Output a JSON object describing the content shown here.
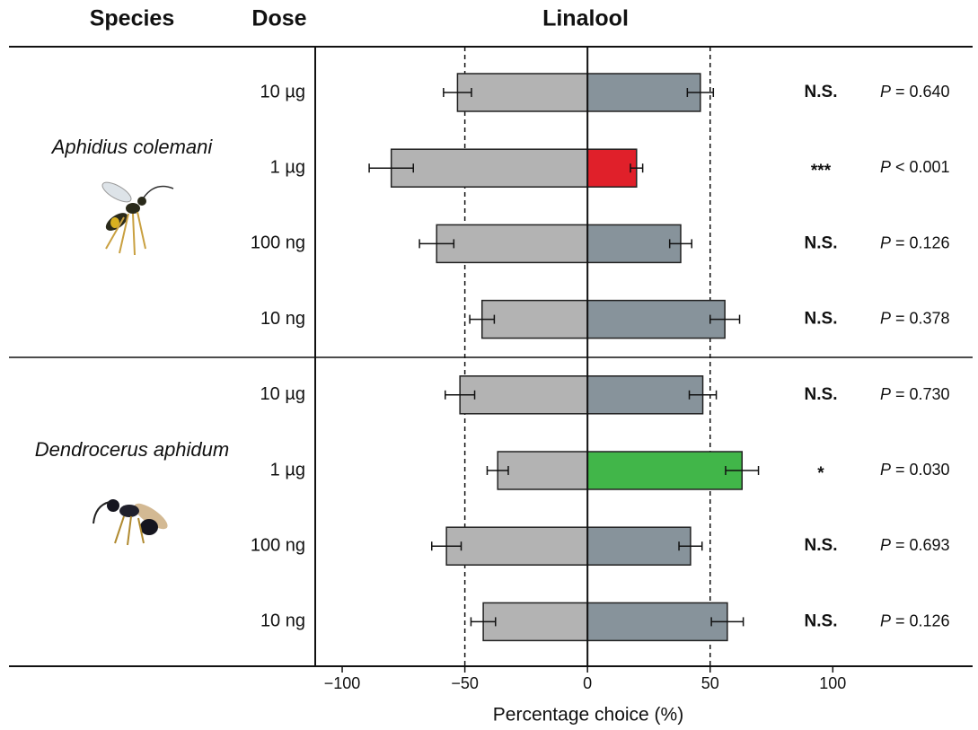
{
  "chart_data": {
    "type": "diverging-bar",
    "title": "Linalool",
    "species_header": "Species",
    "dose_header": "Dose",
    "xlabel": "Percentage choice (%)",
    "xlim": [
      -111,
      157
    ],
    "xticks": [
      {
        "value": -100,
        "label": "−100"
      },
      {
        "value": -50,
        "label": "−50"
      },
      0,
      50,
      100
    ],
    "reference_lines": [
      -50,
      50
    ],
    "p_symbol": "P",
    "groups": [
      {
        "name": "Aphidius colemani",
        "categories": [
          "10 µg",
          "1 µg",
          "100 ng",
          "10 ng"
        ],
        "series": [
          {
            "color": "#b3b3b3",
            "values": [
              -53,
              -80,
              -61.5,
              -43
            ],
            "errors": [
              5.7,
              9,
              7,
              5
            ]
          },
          {
            "colors": [
              "#87939b",
              "#e0202a",
              "#87939b",
              "#87939b"
            ],
            "values": [
              46,
              20,
              38,
              56
            ],
            "errors": [
              5.3,
              2.5,
              4.5,
              6
            ]
          }
        ],
        "significance": [
          "N.S.",
          "***",
          "N.S.",
          "N.S."
        ],
        "p_values": [
          "= 0.640",
          "< 0.001",
          "= 0.126",
          "= 0.378"
        ]
      },
      {
        "name": "Dendrocerus aphidum",
        "categories": [
          "10 µg",
          "1 µg",
          "100 ng",
          "10 ng"
        ],
        "series": [
          {
            "color": "#b3b3b3",
            "values": [
              -52,
              -36.6,
              -57.5,
              -42.5
            ],
            "errors": [
              6,
              4.3,
              6,
              5
            ]
          },
          {
            "colors": [
              "#87939b",
              "#41b649",
              "#87939b",
              "#87939b"
            ],
            "values": [
              47,
              63,
              42,
              57
            ],
            "errors": [
              5.5,
              6.7,
              4.7,
              6.5
            ]
          }
        ],
        "significance": [
          "N.S.",
          "*",
          "N.S.",
          "N.S."
        ],
        "p_values": [
          "= 0.730",
          "= 0.030",
          "= 0.693",
          "= 0.126"
        ]
      }
    ]
  }
}
